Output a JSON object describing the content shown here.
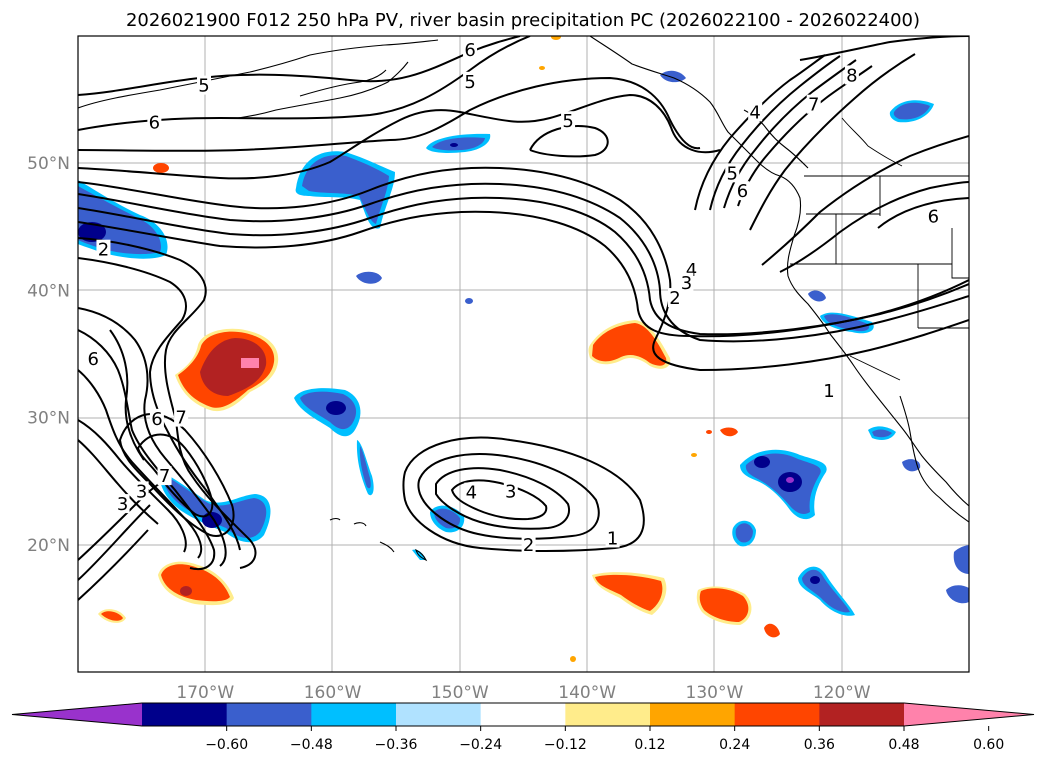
{
  "title": "2026021900 F012 250 hPa PV, river basin precipitation PC (2026022100 - 2026022400)",
  "map": {
    "lon_range": [
      -180,
      -110
    ],
    "lat_range": [
      10,
      60
    ],
    "lon_ticks": [
      {
        "lon": -170,
        "label": "170°W"
      },
      {
        "lon": -160,
        "label": "160°W"
      },
      {
        "lon": -150,
        "label": "150°W"
      },
      {
        "lon": -140,
        "label": "140°W"
      },
      {
        "lon": -130,
        "label": "130°W"
      },
      {
        "lon": -120,
        "label": "120°W"
      }
    ],
    "lat_ticks": [
      {
        "lat": 50,
        "label": "50°N"
      },
      {
        "lat": 40,
        "label": "40°N"
      },
      {
        "lat": 30,
        "label": "30°N"
      },
      {
        "lat": 20,
        "label": "20°N"
      }
    ]
  },
  "colorbar": {
    "ticks": [
      "−0.60",
      "−0.48",
      "−0.36",
      "−0.24",
      "−0.12",
      "0.12",
      "0.24",
      "0.36",
      "0.48",
      "0.60"
    ],
    "colors": [
      "#9932cc",
      "#00008b",
      "#3a5fcd",
      "#00bfff",
      "#b0e2ff",
      "#ffffff",
      "#ffec8b",
      "#ffa500",
      "#ff4500",
      "#b22222",
      "#ff82ab"
    ]
  },
  "contour_labels": [
    {
      "text": "5",
      "lon": -170.1,
      "lat": 56.1
    },
    {
      "text": "6",
      "lon": -174.0,
      "lat": 53.2
    },
    {
      "text": "6",
      "lon": -149.2,
      "lat": 58.9
    },
    {
      "text": "5",
      "lon": -149.2,
      "lat": 56.4
    },
    {
      "text": "5",
      "lon": -141.5,
      "lat": 53.3
    },
    {
      "text": "4",
      "lon": -126.8,
      "lat": 54.0
    },
    {
      "text": "5",
      "lon": -128.6,
      "lat": 49.2
    },
    {
      "text": "6",
      "lon": -127.8,
      "lat": 47.8
    },
    {
      "text": "7",
      "lon": -122.2,
      "lat": 54.6
    },
    {
      "text": "8",
      "lon": -119.2,
      "lat": 56.9
    },
    {
      "text": "6",
      "lon": -112.8,
      "lat": 45.8
    },
    {
      "text": "4",
      "lon": -131.8,
      "lat": 41.6
    },
    {
      "text": "3",
      "lon": -132.2,
      "lat": 40.6
    },
    {
      "text": "2",
      "lon": -133.1,
      "lat": 39.4
    },
    {
      "text": "1",
      "lon": -121.0,
      "lat": 32.1
    },
    {
      "text": "2",
      "lon": -178.0,
      "lat": 43.2
    },
    {
      "text": "6",
      "lon": -178.8,
      "lat": 34.6
    },
    {
      "text": "6",
      "lon": -173.8,
      "lat": 29.9
    },
    {
      "text": "7",
      "lon": -171.9,
      "lat": 30.0
    },
    {
      "text": "7",
      "lon": -173.2,
      "lat": 25.4
    },
    {
      "text": "3",
      "lon": -175.0,
      "lat": 24.2
    },
    {
      "text": "3",
      "lon": -176.5,
      "lat": 23.2
    },
    {
      "text": "4",
      "lon": -149.1,
      "lat": 24.1
    },
    {
      "text": "3",
      "lon": -146.0,
      "lat": 24.2
    },
    {
      "text": "2",
      "lon": -144.6,
      "lat": 20.0
    },
    {
      "text": "1",
      "lon": -138.0,
      "lat": 20.5
    }
  ]
}
